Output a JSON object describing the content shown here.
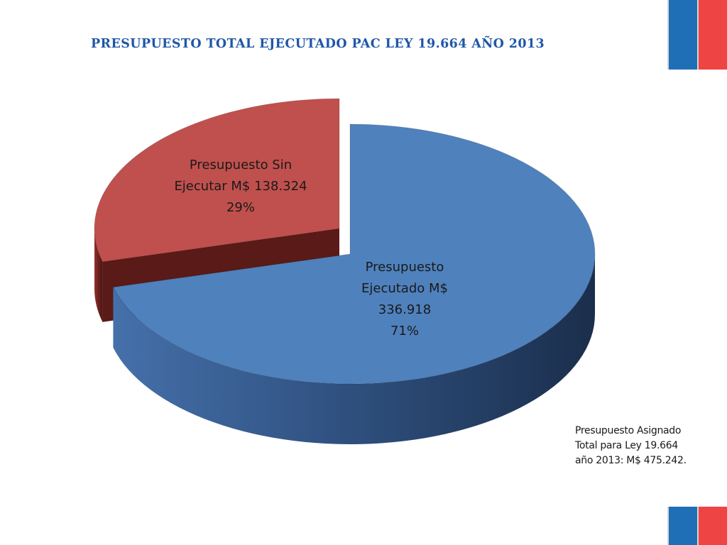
{
  "title": "PRESUPUESTO TOTAL EJECUTADO PAC LEY 19.664 AÑO 2013",
  "note": {
    "lines": [
      "Presupuesto Asignado",
      "Total para Ley 19.664",
      "año 2013: M$ 475.242."
    ]
  },
  "flag_colors": {
    "blue": "#1f6fb7",
    "red": "#ef4444"
  },
  "chart_data": {
    "type": "pie",
    "style": "3d-exploded",
    "unit": "M$",
    "total": 475.242,
    "slices": [
      {
        "value": 336.918,
        "percent": 71,
        "color": "#4f81bd",
        "label_lines": [
          "Presupuesto",
          "Ejecutado M$",
          "336.918",
          "71%"
        ]
      },
      {
        "value": 138.324,
        "percent": 29,
        "color": "#c0504d",
        "label_lines": [
          "Presupuesto Sin",
          "Ejecutar M$ 138.324",
          "29%"
        ]
      }
    ]
  }
}
